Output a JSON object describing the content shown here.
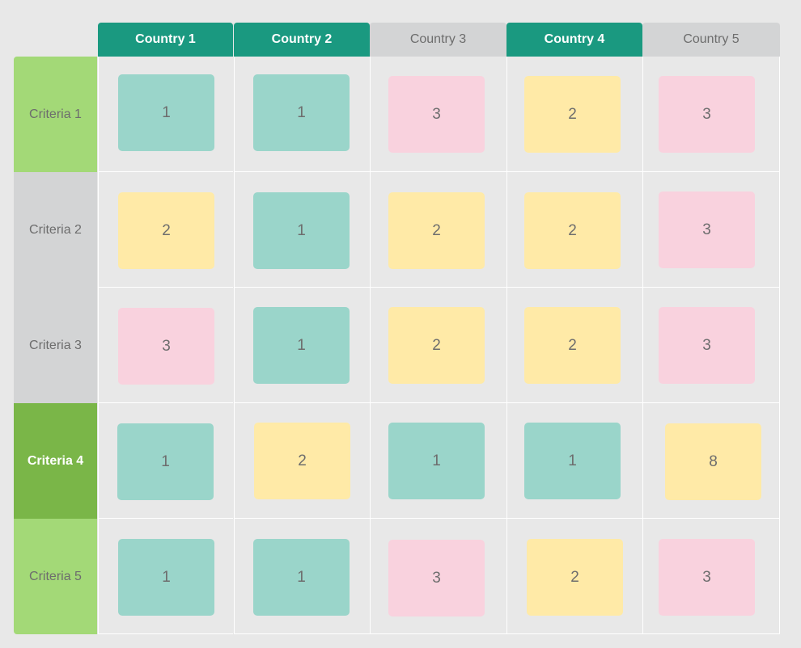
{
  "colors": {
    "header_active": "#1a9980",
    "header_inactive": "#d3d4d5",
    "criteria_light": "#a3d977",
    "criteria_dark": "#7ab648",
    "criteria_gray": "#d3d4d5",
    "score_1": "#9ad5ca",
    "score_2": "#ffeaa7",
    "score_3": "#f9d2de"
  },
  "countries": [
    {
      "label": "Country 1",
      "style": "green"
    },
    {
      "label": "Country 2",
      "style": "green"
    },
    {
      "label": "Country 3",
      "style": "gray"
    },
    {
      "label": "Country 4",
      "style": "green"
    },
    {
      "label": "Country 5",
      "style": "gray"
    }
  ],
  "criteria": [
    {
      "label": "Criteria 1",
      "style": "light",
      "scores": [
        "1",
        "1",
        "3",
        "2",
        "3"
      ]
    },
    {
      "label": "Criteria 2",
      "style": "gray",
      "scores": [
        "2",
        "1",
        "2",
        "2",
        "3"
      ]
    },
    {
      "label": "Criteria 3",
      "style": "gray",
      "scores": [
        "3",
        "1",
        "2",
        "2",
        "3"
      ]
    },
    {
      "label": "Criteria 4",
      "style": "dark",
      "scores": [
        "1",
        "2",
        "1",
        "1",
        "8"
      ]
    },
    {
      "label": "Criteria 5",
      "style": "light",
      "scores": [
        "1",
        "1",
        "3",
        "2",
        "3"
      ]
    }
  ]
}
